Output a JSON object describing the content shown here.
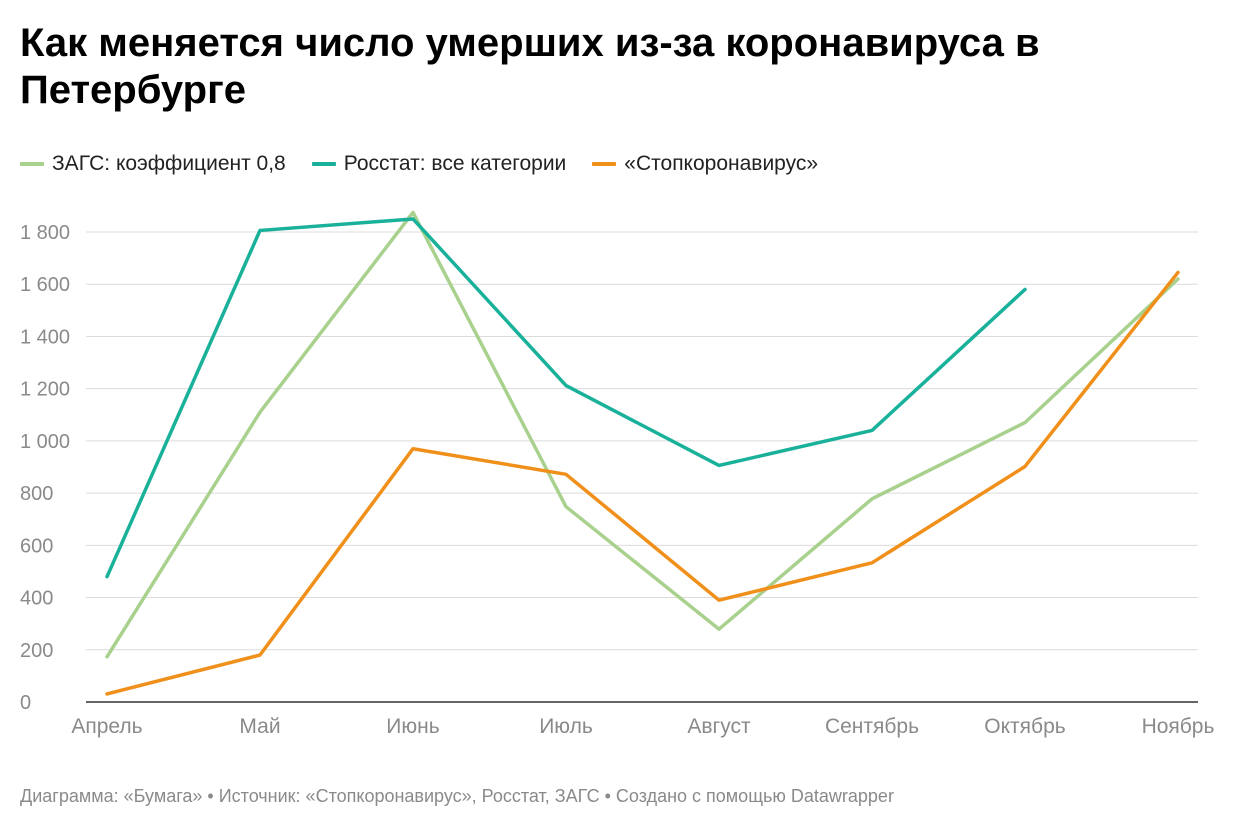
{
  "title": "Как меняется число умерших из-за коронавируса в Петербурге",
  "footer": "Диаграмма: «Бумага» • Источник: «Стопкоронавирус», Росстат, ЗАГС • Создано с помощью Datawrapper",
  "colors": {
    "grid": "#dcdcdc",
    "axis": "#333333",
    "tick_text": "#8a8a8a"
  },
  "chart_data": {
    "type": "line",
    "categories": [
      "Апрель",
      "Май",
      "Июнь",
      "Июль",
      "Август",
      "Сентябрь",
      "Октябрь",
      "Ноябрь"
    ],
    "ylim": [
      0,
      1800
    ],
    "yticks": [
      0,
      200,
      400,
      600,
      800,
      1000,
      1200,
      1400,
      1600,
      1800
    ],
    "ytick_labels": [
      "0",
      "200",
      "400",
      "600",
      "800",
      "1 000",
      "1 200",
      "1 400",
      "1 600",
      "1 800"
    ],
    "grid": true,
    "legend_position": "top-left",
    "series": [
      {
        "name": "ЗАГС: коэффициент 0,8",
        "color": "#a9d18e",
        "values": [
          173,
          1110,
          1875,
          748,
          279,
          778,
          1070,
          1620
        ]
      },
      {
        "name": "Росстат: все категории",
        "color": "#1ab19a",
        "values": [
          480,
          1806,
          1850,
          1212,
          906,
          1040,
          1580,
          null
        ]
      },
      {
        "name": "«Стопкоронавирус»",
        "color": "#f0901a",
        "values": [
          31,
          180,
          970,
          872,
          390,
          533,
          902,
          1645
        ]
      }
    ]
  }
}
